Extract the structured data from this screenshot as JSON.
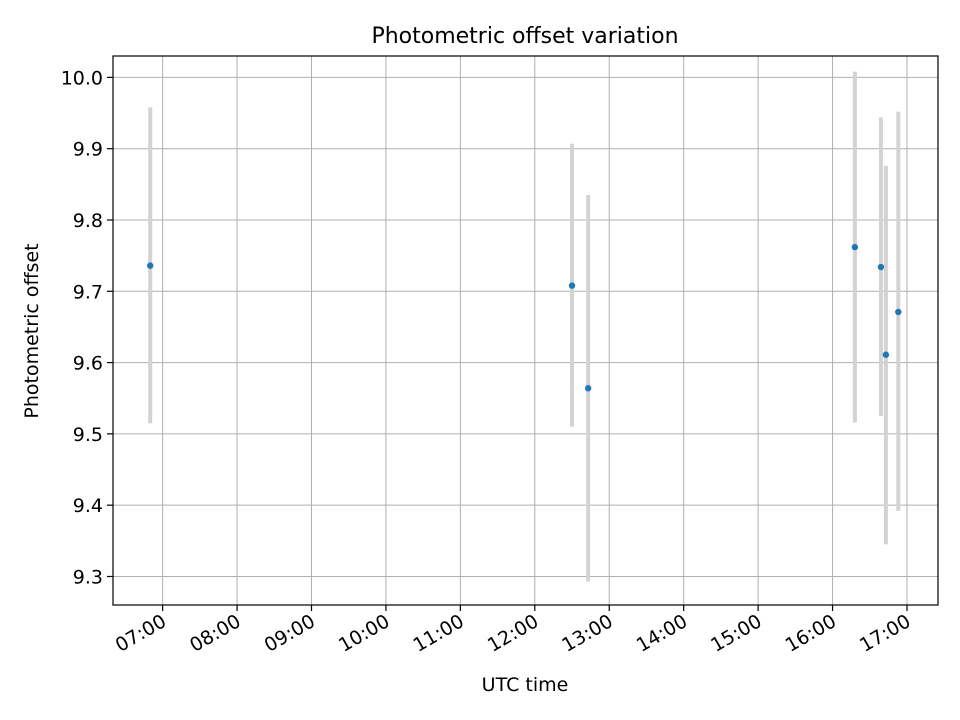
{
  "chart_data": {
    "type": "scatter",
    "title": "Photometric offset variation",
    "xlabel": "UTC time",
    "ylabel": "Photometric offset",
    "grid": true,
    "x_ticks": [
      "07:00",
      "08:00",
      "09:00",
      "10:00",
      "11:00",
      "12:00",
      "13:00",
      "14:00",
      "15:00",
      "16:00",
      "17:00"
    ],
    "y_ticks": [
      "9.3",
      "9.4",
      "9.5",
      "9.6",
      "9.7",
      "9.8",
      "9.9",
      "10.0"
    ],
    "xlim": [
      "06:20",
      "17:25"
    ],
    "ylim": [
      9.26,
      10.03
    ],
    "colors": {
      "point": "#1f77b4",
      "errorbar": "#d3d3d3",
      "grid": "#b0b0b0"
    },
    "points": [
      {
        "x": "06:50",
        "y": 9.736,
        "yerr_low": 9.515,
        "yerr_high": 9.958
      },
      {
        "x": "12:30",
        "y": 9.708,
        "yerr_low": 9.51,
        "yerr_high": 9.907
      },
      {
        "x": "12:43",
        "y": 9.564,
        "yerr_low": 9.293,
        "yerr_high": 9.835
      },
      {
        "x": "16:18",
        "y": 9.762,
        "yerr_low": 9.516,
        "yerr_high": 10.008
      },
      {
        "x": "16:39",
        "y": 9.734,
        "yerr_low": 9.525,
        "yerr_high": 9.944
      },
      {
        "x": "16:43",
        "y": 9.611,
        "yerr_low": 9.345,
        "yerr_high": 9.876
      },
      {
        "x": "16:53",
        "y": 9.671,
        "yerr_low": 9.392,
        "yerr_high": 9.952
      }
    ]
  }
}
